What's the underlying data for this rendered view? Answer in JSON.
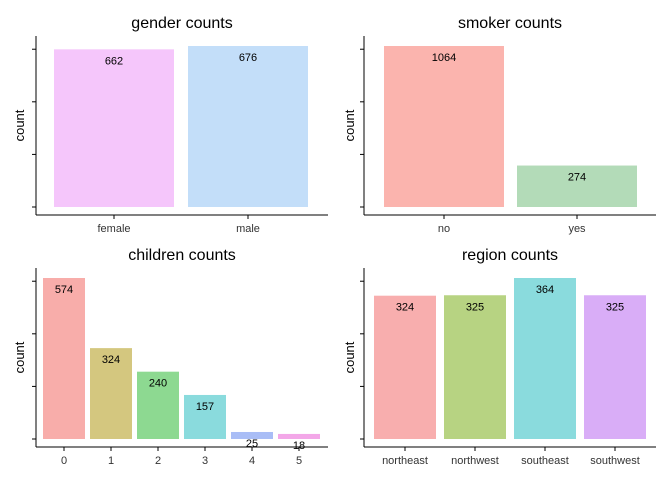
{
  "chart_data": [
    {
      "id": "gender",
      "type": "bar",
      "title": "gender counts",
      "xlabel": "",
      "ylabel": "count",
      "categories": [
        "female",
        "male"
      ],
      "values": [
        662,
        676
      ],
      "colors": [
        "#F5C6FB",
        "#C3DEF9"
      ],
      "ylim": [
        0,
        676
      ],
      "grid": false,
      "legend": "none"
    },
    {
      "id": "smoker",
      "type": "bar",
      "title": "smoker counts",
      "xlabel": "",
      "ylabel": "count",
      "categories": [
        "no",
        "yes"
      ],
      "values": [
        1064,
        274
      ],
      "colors": [
        "#FBB4AE",
        "#B3DBB8"
      ],
      "ylim": [
        0,
        1064
      ],
      "grid": false,
      "legend": "none"
    },
    {
      "id": "children",
      "type": "bar",
      "title": "children counts",
      "xlabel": "",
      "ylabel": "count",
      "categories": [
        "0",
        "1",
        "2",
        "3",
        "4",
        "5"
      ],
      "values": [
        574,
        324,
        240,
        157,
        25,
        18
      ],
      "colors": [
        "#F8ADAA",
        "#D4C77F",
        "#8DD991",
        "#8ADBDD",
        "#A9BDF6",
        "#F3A7E8"
      ],
      "ylim": [
        0,
        574
      ],
      "grid": false,
      "legend": "none"
    },
    {
      "id": "region",
      "type": "bar",
      "title": "region counts",
      "xlabel": "",
      "ylabel": "count",
      "categories": [
        "northeast",
        "northwest",
        "southeast",
        "southwest"
      ],
      "values": [
        324,
        325,
        364,
        325
      ],
      "colors": [
        "#F8AEAE",
        "#B7D382",
        "#8ADBDD",
        "#D9ADF7"
      ],
      "ylim": [
        0,
        364
      ],
      "grid": false,
      "legend": "none"
    }
  ]
}
